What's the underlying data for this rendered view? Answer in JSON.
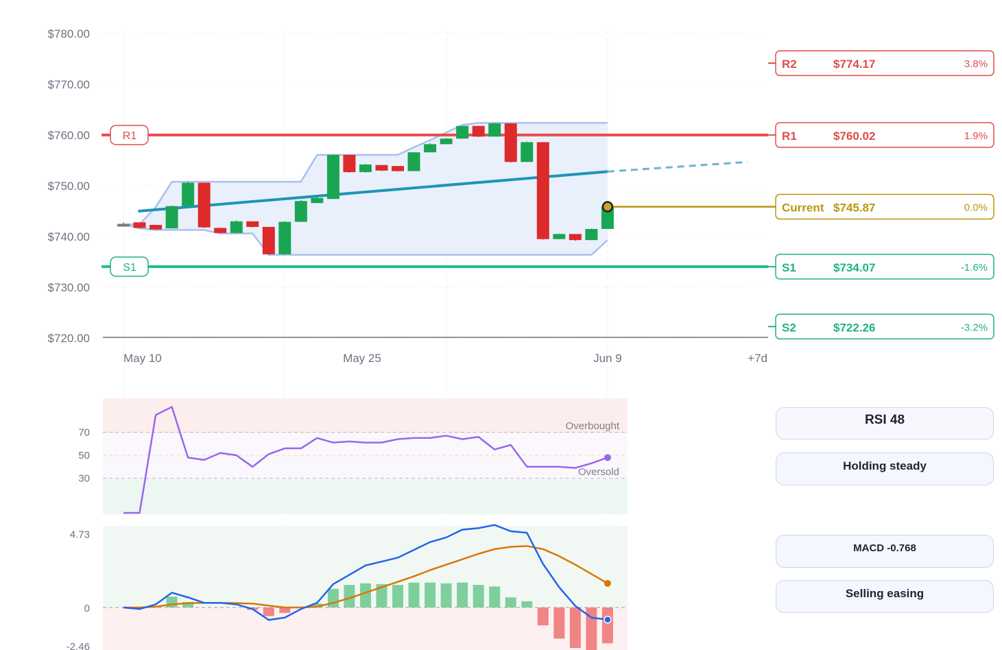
{
  "chart_data": [
    {
      "type": "candlestick",
      "ylim": [
        720,
        780
      ],
      "y_ticks": [
        "$780.00",
        "$770.00",
        "$760.00",
        "$750.00",
        "$740.00",
        "$730.00",
        "$720.00"
      ],
      "y_tick_values": [
        780,
        770,
        760,
        750,
        740,
        730,
        720
      ],
      "x_labels": [
        "May 10",
        "May 25",
        "Jun 9",
        "+7d"
      ],
      "x_label_index": [
        0,
        15,
        30,
        39.25
      ],
      "candles": [
        {
          "o": 742.5,
          "h": 742.8,
          "l": 741.9,
          "c": 742.0,
          "pending": true
        },
        {
          "o": 742.8,
          "h": 742.8,
          "l": 741.6,
          "c": 741.7
        },
        {
          "o": 742.3,
          "h": 742.3,
          "l": 741.3,
          "c": 741.4
        },
        {
          "o": 741.6,
          "h": 746.1,
          "l": 741.6,
          "c": 746.0
        },
        {
          "o": 746.0,
          "h": 750.8,
          "l": 746.0,
          "c": 750.6
        },
        {
          "o": 750.6,
          "h": 750.6,
          "l": 741.7,
          "c": 741.8
        },
        {
          "o": 741.7,
          "h": 741.7,
          "l": 740.6,
          "c": 740.7
        },
        {
          "o": 740.7,
          "h": 743.2,
          "l": 740.6,
          "c": 743.0
        },
        {
          "o": 743.0,
          "h": 743.0,
          "l": 741.8,
          "c": 741.9
        },
        {
          "o": 741.9,
          "h": 741.9,
          "l": 736.4,
          "c": 736.5
        },
        {
          "o": 736.5,
          "h": 743.0,
          "l": 736.4,
          "c": 742.9
        },
        {
          "o": 742.9,
          "h": 747.2,
          "l": 742.9,
          "c": 747.0
        },
        {
          "o": 746.6,
          "h": 747.8,
          "l": 746.6,
          "c": 747.6
        },
        {
          "o": 747.4,
          "h": 756.2,
          "l": 747.4,
          "c": 756.1
        },
        {
          "o": 756.1,
          "h": 756.1,
          "l": 752.6,
          "c": 752.7
        },
        {
          "o": 752.7,
          "h": 754.3,
          "l": 752.6,
          "c": 754.2
        },
        {
          "o": 754.1,
          "h": 754.1,
          "l": 752.9,
          "c": 753.0
        },
        {
          "o": 753.9,
          "h": 753.9,
          "l": 752.8,
          "c": 752.9
        },
        {
          "o": 752.9,
          "h": 756.6,
          "l": 752.9,
          "c": 756.6
        },
        {
          "o": 756.6,
          "h": 758.4,
          "l": 756.6,
          "c": 758.2
        },
        {
          "o": 758.2,
          "h": 759.4,
          "l": 758.2,
          "c": 759.3
        },
        {
          "o": 759.3,
          "h": 761.9,
          "l": 759.3,
          "c": 761.8
        },
        {
          "o": 761.8,
          "h": 761.8,
          "l": 759.6,
          "c": 759.7
        },
        {
          "o": 759.7,
          "h": 762.4,
          "l": 759.7,
          "c": 762.3
        },
        {
          "o": 762.3,
          "h": 762.3,
          "l": 754.6,
          "c": 754.7
        },
        {
          "o": 754.7,
          "h": 758.7,
          "l": 754.7,
          "c": 758.6
        },
        {
          "o": 758.6,
          "h": 758.6,
          "l": 739.4,
          "c": 739.5
        },
        {
          "o": 739.5,
          "h": 740.6,
          "l": 739.5,
          "c": 740.5
        },
        {
          "o": 740.5,
          "h": 740.5,
          "l": 739.2,
          "c": 739.3
        },
        {
          "o": 739.3,
          "h": 741.6,
          "l": 739.3,
          "c": 741.5
        },
        {
          "o": 741.5,
          "h": 745.9,
          "l": 741.5,
          "c": 745.87
        }
      ],
      "channel_upper": [
        742.4,
        742.4,
        745.8,
        750.8,
        750.8,
        750.8,
        750.8,
        750.8,
        750.8,
        750.8,
        750.8,
        750.8,
        756.1,
        756.1,
        756.1,
        756.1,
        756.1,
        756.1,
        757.6,
        759.0,
        760.5,
        762.0,
        762.4,
        762.4,
        762.4,
        762.4,
        762.4,
        762.4,
        762.4,
        762.4,
        762.4
      ],
      "channel_lower": [
        742.4,
        741.6,
        741.3,
        741.3,
        741.3,
        741.3,
        740.6,
        740.6,
        740.6,
        736.4,
        736.4,
        736.4,
        736.4,
        736.4,
        736.4,
        736.4,
        736.4,
        736.4,
        736.4,
        736.4,
        736.4,
        736.4,
        736.4,
        736.4,
        736.4,
        736.4,
        736.4,
        736.4,
        736.4,
        736.4,
        739.3
      ],
      "trend": {
        "from_index": 1,
        "from_value": 745.0,
        "to_index": 30,
        "to_value": 752.8,
        "projection_to_index": 39.25,
        "projection_to_value": 754.7
      },
      "current": {
        "value": 745.87
      },
      "levels": [
        {
          "key": "R2",
          "label": "R2",
          "value": 774.17,
          "value_text": "$774.17",
          "pct": "3.8%",
          "color": "#e04b4b",
          "line": false
        },
        {
          "key": "R1",
          "label": "R1",
          "value": 760.02,
          "value_text": "$760.02",
          "pct": "1.9%",
          "color": "#e04b4b",
          "line": true
        },
        {
          "key": "CUR",
          "label": "Current",
          "value": 745.87,
          "value_text": "$745.87",
          "pct": "0.0%",
          "color": "#b8960c",
          "line": false
        },
        {
          "key": "S1",
          "label": "S1",
          "value": 734.07,
          "value_text": "$734.07",
          "pct": "-1.6%",
          "color": "#1fb37e",
          "line": true
        },
        {
          "key": "S2",
          "label": "S2",
          "value": 722.26,
          "value_text": "$722.26",
          "pct": "-3.2%",
          "color": "#1fb37e",
          "line": false
        }
      ],
      "colors": {
        "up": "#1aa552",
        "down": "#dd2a2a",
        "channel": "#aabfee",
        "trend": "#1f94b5",
        "r1": "#e84b4b",
        "s1": "#1fbf86"
      }
    },
    {
      "type": "line",
      "indicator": "RSI",
      "ylim": [
        0,
        100
      ],
      "y_ticks": [
        "70",
        "50",
        "30"
      ],
      "y_tick_values": [
        70,
        50,
        30
      ],
      "overbought_label": "Overbought",
      "oversold_label": "Oversold",
      "values": [
        0,
        0,
        85,
        92,
        48,
        46,
        52,
        50,
        40,
        51,
        56,
        56,
        65,
        61,
        62,
        61,
        61,
        64,
        65,
        65,
        67,
        64,
        66,
        55,
        59,
        40,
        40,
        40,
        39,
        43,
        48
      ],
      "colors": {
        "line": "#9966ee"
      }
    },
    {
      "type": "line",
      "indicator": "MACD",
      "ylim": [
        -2.46,
        4.73
      ],
      "y_ticks": [
        "4.73",
        "0",
        "-2.46"
      ],
      "y_tick_values": [
        4.73,
        0,
        -2.46
      ],
      "macd": [
        0,
        -0.1,
        0.2,
        0.95,
        0.65,
        0.3,
        0.3,
        0.2,
        -0.1,
        -0.8,
        -0.65,
        -0.1,
        0.3,
        1.5,
        2.1,
        2.7,
        2.95,
        3.2,
        3.7,
        4.2,
        4.5,
        5.0,
        5.1,
        5.3,
        4.9,
        4.8,
        2.8,
        1.3,
        0.1,
        -0.65,
        -0.78
      ],
      "signal": [
        0,
        0,
        0.05,
        0.2,
        0.28,
        0.3,
        0.3,
        0.28,
        0.25,
        0.12,
        0.0,
        0.0,
        0.05,
        0.3,
        0.6,
        0.95,
        1.3,
        1.65,
        2.0,
        2.4,
        2.75,
        3.1,
        3.45,
        3.75,
        3.9,
        3.95,
        3.75,
        3.3,
        2.75,
        2.15,
        1.55
      ],
      "histogram": [
        null,
        null,
        null,
        0.7,
        0.35,
        null,
        null,
        null,
        -0.15,
        -0.55,
        -0.35,
        null,
        0.25,
        1.2,
        1.45,
        1.55,
        1.5,
        1.45,
        1.6,
        1.6,
        1.55,
        1.6,
        1.45,
        1.35,
        0.65,
        0.4,
        -1.15,
        -2.0,
        -2.6,
        -2.8,
        -2.3
      ],
      "colors": {
        "macd": "#2563eb",
        "signal": "#d97706",
        "hist_up": "#7fcf9d",
        "hist_down": "#ef8585"
      }
    }
  ],
  "side": {
    "rsi_label": "RSI 48",
    "rsi_status": "Holding steady",
    "macd_label": "MACD -0.768",
    "macd_status": "Selling easing"
  }
}
